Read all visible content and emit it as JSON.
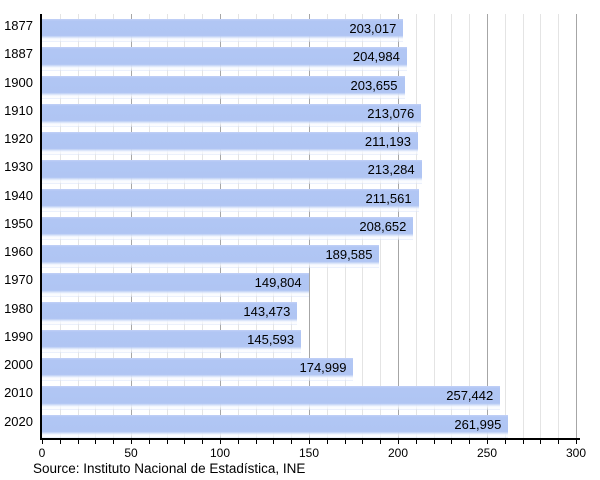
{
  "chart_data": {
    "type": "bar",
    "orientation": "horizontal",
    "title": "",
    "xlabel": "",
    "ylabel": "",
    "categories": [
      "1877",
      "1887",
      "1900",
      "1910",
      "1920",
      "1930",
      "1940",
      "1950",
      "1960",
      "1970",
      "1980",
      "1990",
      "2000",
      "2010",
      "2020"
    ],
    "values": [
      203017,
      204984,
      203655,
      213076,
      211193,
      213284,
      211561,
      208652,
      189585,
      149804,
      143473,
      145593,
      174999,
      257442,
      261995
    ],
    "value_labels": [
      "203,017",
      "204,984",
      "203,655",
      "213,076",
      "211,193",
      "213,284",
      "211,561",
      "208,652",
      "189,585",
      "149,804",
      "143,473",
      "145,593",
      "174,999",
      "257,442",
      "261,995"
    ],
    "xlim": [
      0,
      300
    ],
    "x_axis_unit": "thousands",
    "x_tick_labels": [
      "0",
      "50",
      "100",
      "150",
      "200",
      "250",
      "300"
    ],
    "x_tick_label_values": [
      0,
      50,
      100,
      150,
      200,
      250,
      300
    ],
    "x_grid_step_minor": 10,
    "x_grid_step_major": 50,
    "grid": "vertical",
    "legend": "none",
    "bar_color": "#b0c5f3"
  },
  "source_note": "Source: Instituto Nacional de Estadística, INE",
  "colors": {
    "background": "#ffffff",
    "bar": "#b0c5f3",
    "bar_highlight": "#ffffff",
    "gridline_minor": "#e4e4e4",
    "gridline_major": "#a6a6a6",
    "axis": "#000000",
    "text": "#000000"
  }
}
